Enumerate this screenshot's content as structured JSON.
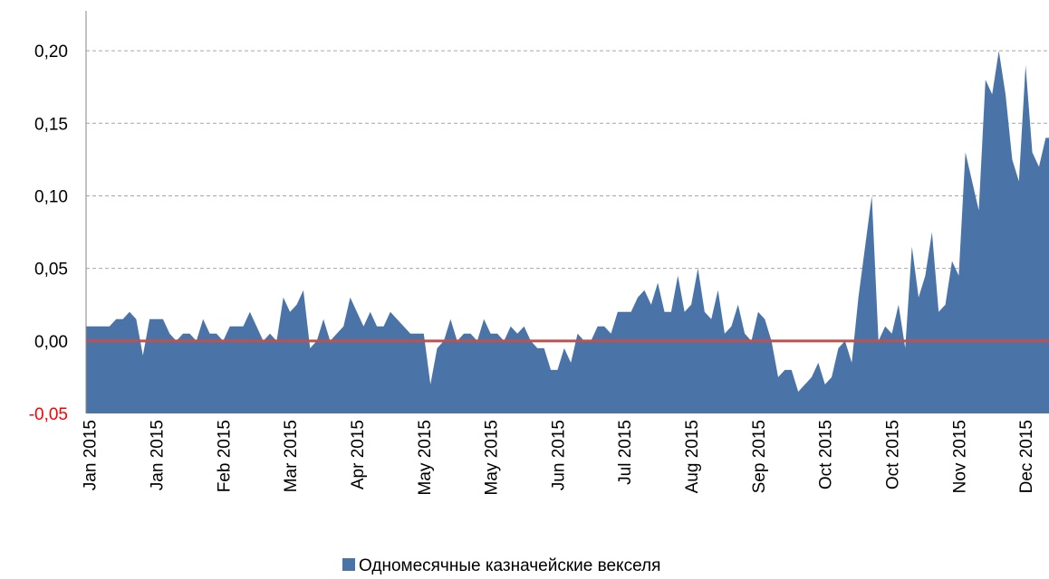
{
  "chart_data": {
    "type": "area",
    "categories": [
      "Jan 2015",
      null,
      null,
      null,
      null,
      null,
      null,
      null,
      null,
      null,
      "Jan 2015",
      null,
      null,
      null,
      null,
      null,
      null,
      null,
      null,
      null,
      "Feb 2015",
      null,
      null,
      null,
      null,
      null,
      null,
      null,
      null,
      null,
      "Mar 2015",
      null,
      null,
      null,
      null,
      null,
      null,
      null,
      null,
      null,
      "Apr 2015",
      null,
      null,
      null,
      null,
      null,
      null,
      null,
      null,
      null,
      "May 2015",
      null,
      null,
      null,
      null,
      null,
      null,
      null,
      null,
      null,
      "May 2015",
      null,
      null,
      null,
      null,
      null,
      null,
      null,
      null,
      null,
      "Jun 2015",
      null,
      null,
      null,
      null,
      null,
      null,
      null,
      null,
      null,
      "Jul 2015",
      null,
      null,
      null,
      null,
      null,
      null,
      null,
      null,
      null,
      "Aug 2015",
      null,
      null,
      null,
      null,
      null,
      null,
      null,
      null,
      null,
      "Sep 2015",
      null,
      null,
      null,
      null,
      null,
      null,
      null,
      null,
      null,
      "Oct 2015",
      null,
      null,
      null,
      null,
      null,
      null,
      null,
      null,
      null,
      "Oct 2015",
      null,
      null,
      null,
      null,
      null,
      null,
      null,
      null,
      null,
      "Nov 2015",
      null,
      null,
      null,
      null,
      null,
      null,
      null,
      null,
      null,
      "Dec 2015",
      null,
      null,
      null
    ],
    "series": [
      {
        "name": "Одномесячные казначейские векселя",
        "color": "#4a74a8",
        "values": [
          0.01,
          0.01,
          0.01,
          0.01,
          0.015,
          0.015,
          0.02,
          0.015,
          -0.01,
          0.015,
          0.015,
          0.015,
          0.005,
          0.0,
          0.005,
          0.005,
          0.0,
          0.015,
          0.005,
          0.005,
          0.0,
          0.01,
          0.01,
          0.01,
          0.02,
          0.01,
          0.0,
          0.005,
          0.0,
          0.03,
          0.02,
          0.025,
          0.035,
          -0.005,
          0.0,
          0.015,
          0.0,
          0.005,
          0.01,
          0.03,
          0.02,
          0.01,
          0.02,
          0.01,
          0.01,
          0.02,
          0.015,
          0.01,
          0.005,
          0.005,
          0.005,
          -0.03,
          -0.005,
          0.0,
          0.015,
          0.0,
          0.005,
          0.005,
          0.0,
          0.015,
          0.005,
          0.005,
          0.0,
          0.01,
          0.005,
          0.01,
          0.0,
          -0.005,
          -0.005,
          -0.02,
          -0.02,
          -0.005,
          -0.015,
          0.005,
          0.0,
          0.0,
          0.01,
          0.01,
          0.005,
          0.02,
          0.02,
          0.02,
          0.03,
          0.035,
          0.025,
          0.04,
          0.02,
          0.02,
          0.045,
          0.02,
          0.025,
          0.05,
          0.02,
          0.015,
          0.035,
          0.005,
          0.01,
          0.025,
          0.005,
          0.0,
          0.02,
          0.015,
          0.0,
          -0.025,
          -0.02,
          -0.02,
          -0.035,
          -0.03,
          -0.025,
          -0.015,
          -0.03,
          -0.025,
          -0.005,
          0.0,
          -0.015,
          0.03,
          0.065,
          0.1,
          0.0,
          0.01,
          0.005,
          0.025,
          -0.005,
          0.065,
          0.03,
          0.045,
          0.075,
          0.02,
          0.025,
          0.055,
          0.045,
          0.13,
          0.11,
          0.09,
          0.18,
          0.17,
          0.2,
          0.17,
          0.125,
          0.11,
          0.19,
          0.13,
          0.12,
          0.14
        ]
      }
    ],
    "ylim": [
      -0.05,
      0.2275
    ],
    "yticks": [
      {
        "value": -0.05,
        "label": "-0,05"
      },
      {
        "value": 0,
        "label": "0,00"
      },
      {
        "value": 0.05,
        "label": "0,05"
      },
      {
        "value": 0.1,
        "label": "0,10"
      },
      {
        "value": 0.15,
        "label": "0,15"
      },
      {
        "value": 0.2,
        "label": "0,20"
      }
    ],
    "grid": true,
    "zero_line_color": "#c0504d",
    "negative_tick_color": "#ff0000",
    "legend": "bottom"
  }
}
